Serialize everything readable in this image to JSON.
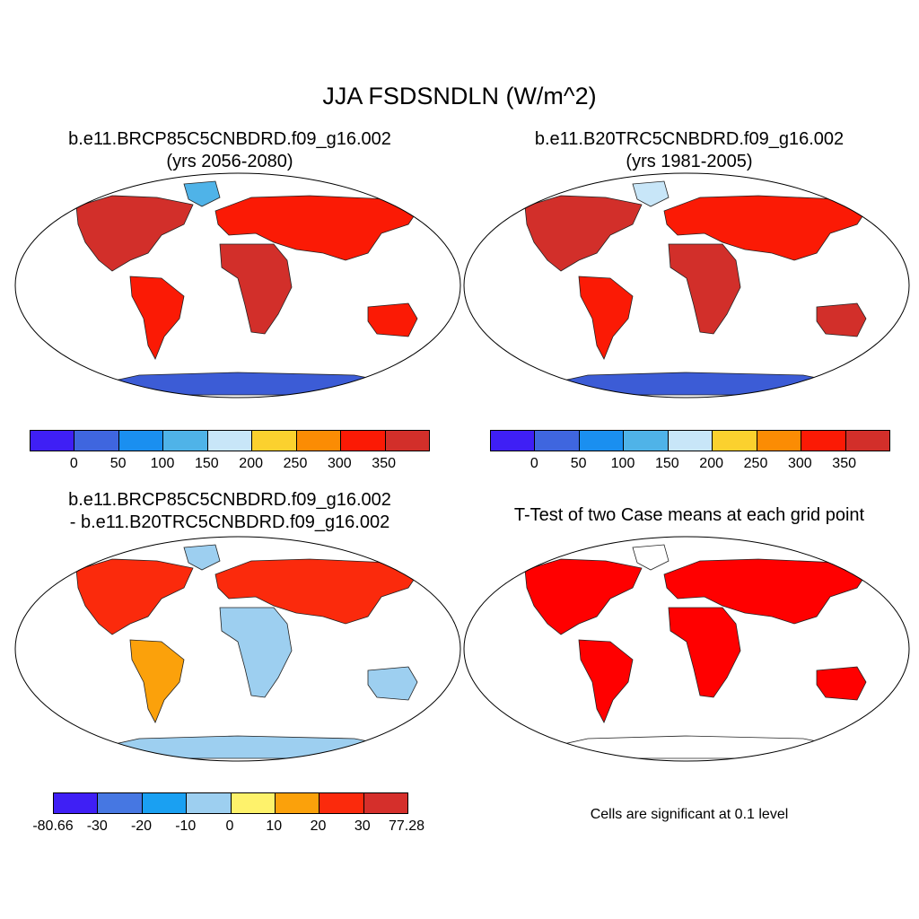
{
  "title": "JJA FSDSNDLN (W/m^2)",
  "panels": [
    {
      "name": "future-case",
      "title_line1": "b.e11.BRCP85C5CNBDRD.f09_g16.002",
      "title_line2": "(yrs 2056-2080)"
    },
    {
      "name": "historical-case",
      "title_line1": "b.e11.B20TRC5CNBDRD.f09_g16.002",
      "title_line2": "(yrs 1981-2005)"
    },
    {
      "name": "difference",
      "title_line1": "b.e11.BRCP85C5CNBDRD.f09_g16.002",
      "title_line2": "- b.e11.B20TRC5CNBDRD.f09_g16.002"
    },
    {
      "name": "ttest",
      "title_line1": "T-Test of two Case means at each grid point",
      "footnote": "Cells are significant at 0.1 level"
    }
  ],
  "colorbars": {
    "absolute": {
      "colors": [
        "#3f1ff5",
        "#3f66df",
        "#1a8ff0",
        "#4fb3e8",
        "#c8e6f8",
        "#fbd12e",
        "#fb8c04",
        "#fb1a05",
        "#d22f2a"
      ],
      "labels": [
        "0",
        "50",
        "100",
        "150",
        "200",
        "250",
        "300",
        "350"
      ]
    },
    "difference": {
      "colors": [
        "#3f1ff5",
        "#4677e2",
        "#1aa0f2",
        "#9dcff0",
        "#fef26b",
        "#fba10b",
        "#fb2a0c",
        "#d52f2b"
      ],
      "labels": [
        "-80.66",
        "-30",
        "-20",
        "-10",
        "0",
        "10",
        "20",
        "30",
        "77.28"
      ]
    }
  },
  "significance_color": "#ff0000",
  "ocean_color": "#ffffff",
  "antarctica_color": "#3c5cd6"
}
